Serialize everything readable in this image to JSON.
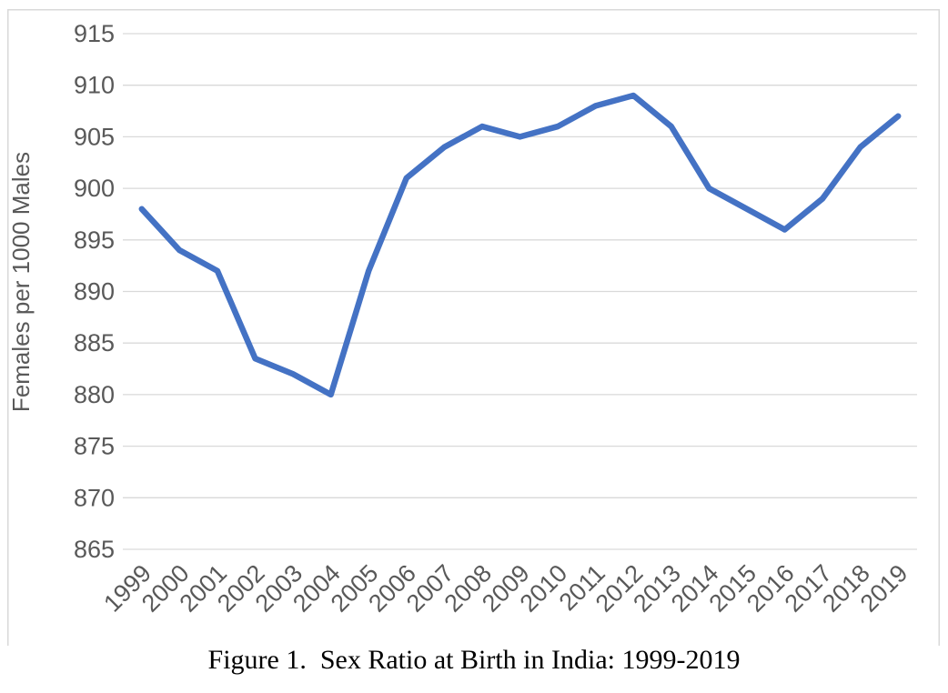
{
  "chart_data": {
    "type": "line",
    "caption": "Figure 1.  Sex Ratio at Birth in India: 1999-2019",
    "ylabel": "Females per 1000 Males",
    "xlabel": "",
    "categories": [
      "1999",
      "2000",
      "2001",
      "2002",
      "2003",
      "2004",
      "2005",
      "2006",
      "2007",
      "2008",
      "2009",
      "2010",
      "2011",
      "2012",
      "2013",
      "2014",
      "2015",
      "2016",
      "2017",
      "2018",
      "2019"
    ],
    "values": [
      898,
      894,
      892,
      883.5,
      882,
      880,
      892,
      901,
      904,
      906,
      905,
      906,
      908,
      909,
      906,
      900,
      898,
      896,
      899,
      904,
      907
    ],
    "ylim": [
      865,
      915
    ],
    "ytick_step": 5,
    "grid": true,
    "legend": false,
    "line_color": "#4472C4",
    "grid_color": "#D9D9D9",
    "border_color": "#D9D9D9",
    "axis_text_color": "#595959"
  }
}
